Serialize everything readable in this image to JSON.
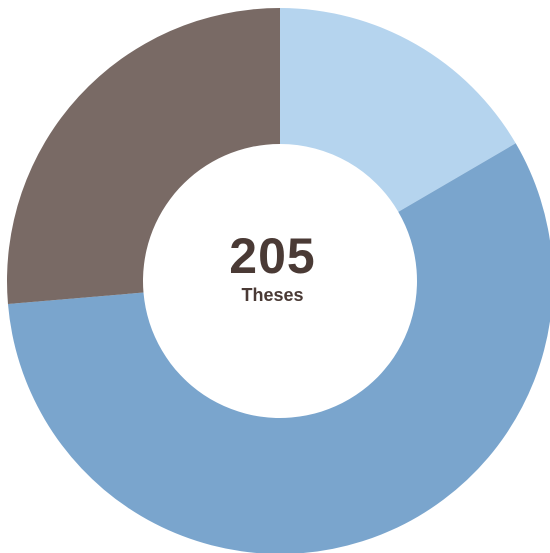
{
  "chart_data": {
    "type": "pie",
    "variant": "donut",
    "center": {
      "total": "205",
      "caption": "Theses"
    },
    "slices": [
      {
        "value": 34,
        "color": "#b5d4ee"
      },
      {
        "value": 117,
        "color": "#7aa5cd"
      },
      {
        "value": 54,
        "color": "#796a65"
      }
    ],
    "start_angle_deg": 0,
    "direction": "clockwise",
    "legend": "none"
  }
}
